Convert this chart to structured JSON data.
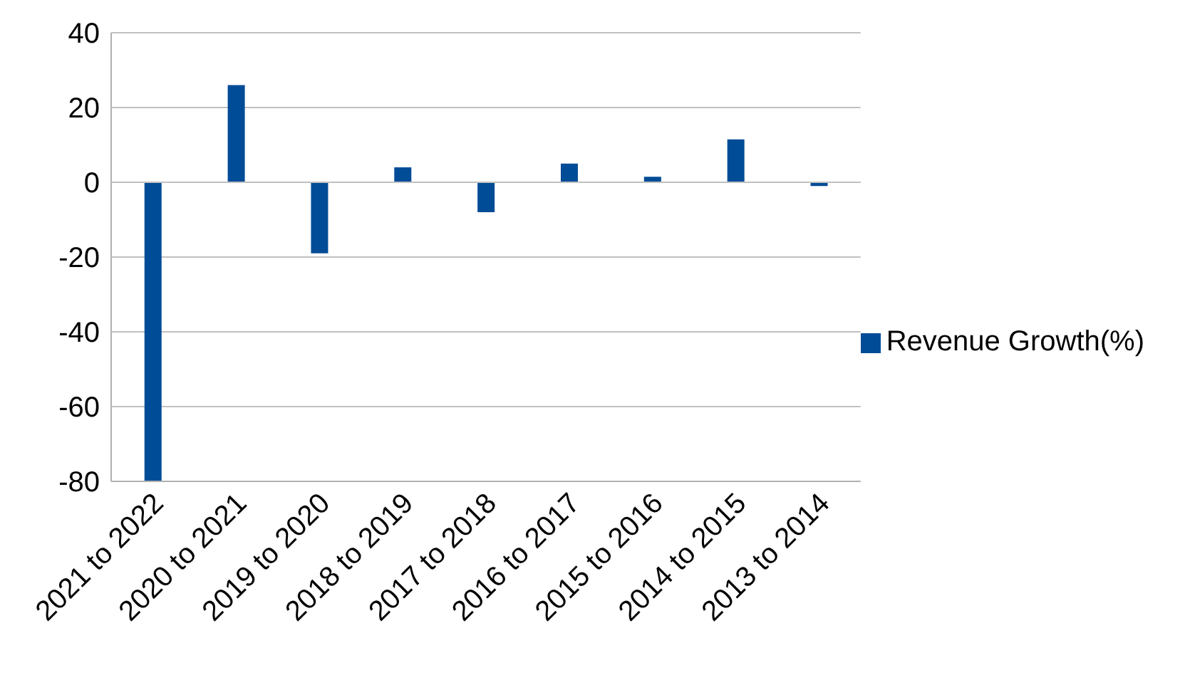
{
  "chart_data": {
    "type": "bar",
    "categories": [
      "2021 to 2022",
      "2020 to 2021",
      "2019 to 2020",
      "2018 to 2019",
      "2017 to 2018",
      "2016 to 2017",
      "2015 to 2016",
      "2014 to 2015",
      "2013 to 2014"
    ],
    "series": [
      {
        "name": "Revenue Growth(%)",
        "color": "#004c97",
        "values": [
          -80,
          26,
          -19,
          4,
          -8,
          5,
          1.5,
          11.5,
          -1
        ]
      }
    ],
    "ylim": [
      -80,
      40
    ],
    "yticks": [
      -80,
      -60,
      -40,
      -20,
      0,
      20,
      40
    ],
    "grid": "y",
    "legend": "right"
  }
}
